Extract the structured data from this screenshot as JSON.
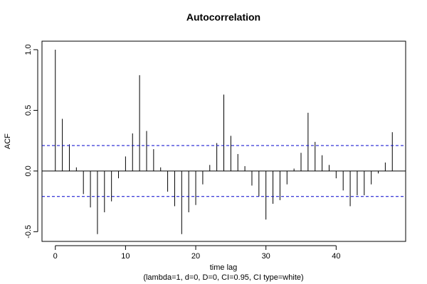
{
  "chart_data": {
    "type": "bar",
    "title": "Autocorrelation",
    "xlabel": "time lag",
    "subtitle": "(lambda=1, d=0, D=0, CI=0.95, CI type=white)",
    "ylabel": "ACF",
    "xlim": [
      -1.9,
      49.9
    ],
    "ylim": [
      -0.58,
      1.07
    ],
    "x_ticks": [
      0,
      10,
      20,
      30,
      40
    ],
    "y_ticks": [
      -0.5,
      0.0,
      0.5,
      1.0
    ],
    "y_tick_labels": [
      "-0.5",
      "0.0",
      "0.5",
      "1.0"
    ],
    "ci": [
      0.21,
      -0.21
    ],
    "ci_color": "#0000cc",
    "bar_color": "#000000",
    "lags": [
      0,
      1,
      2,
      3,
      4,
      5,
      6,
      7,
      8,
      9,
      10,
      11,
      12,
      13,
      14,
      15,
      16,
      17,
      18,
      19,
      20,
      21,
      22,
      23,
      24,
      25,
      26,
      27,
      28,
      29,
      30,
      31,
      32,
      33,
      34,
      35,
      36,
      37,
      38,
      39,
      40,
      41,
      42,
      43,
      44,
      45,
      46,
      47,
      48
    ],
    "values": [
      1.0,
      0.43,
      0.22,
      0.03,
      -0.19,
      -0.3,
      -0.52,
      -0.34,
      -0.25,
      -0.06,
      0.12,
      0.31,
      0.79,
      0.33,
      0.18,
      0.03,
      -0.17,
      -0.29,
      -0.52,
      -0.34,
      -0.28,
      -0.11,
      0.05,
      0.23,
      0.63,
      0.29,
      0.14,
      0.04,
      -0.12,
      -0.21,
      -0.4,
      -0.27,
      -0.24,
      -0.11,
      0.02,
      0.15,
      0.48,
      0.24,
      0.13,
      0.05,
      -0.06,
      -0.16,
      -0.29,
      -0.2,
      -0.2,
      -0.11,
      -0.02,
      0.07,
      0.32
    ]
  }
}
